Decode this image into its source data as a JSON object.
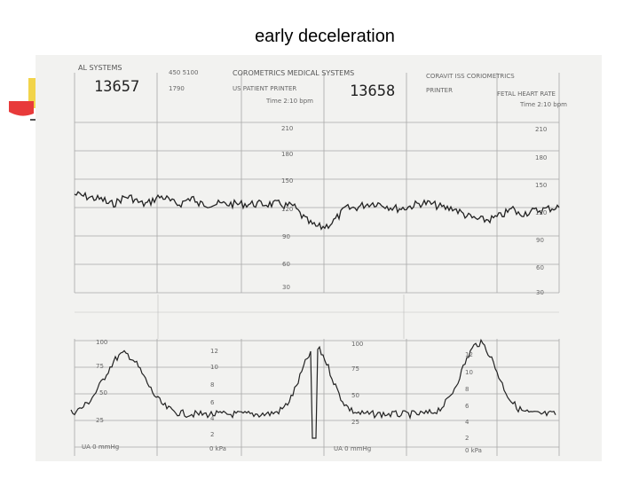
{
  "slide": {
    "title": "early deceleration"
  },
  "strip": {
    "header_left": "AL SYSTEMS",
    "header_code": "450 5100",
    "header_company": "COROMETRICS MEDICAL SYSTEMS",
    "header_right": "CORAVIT  ISS  CORIOMETRICS",
    "subheader_left": "1790",
    "subheader_mid": "US PATIENT PRINTER",
    "subheader_bpm": "Time 2:10 bpm",
    "subheader_right": "PRINTER",
    "subheader_right2": "FETAL HEART RATE",
    "subheader_right3": "Time 2:10 bpm",
    "page_number_1": "13657",
    "page_number_2": "13658",
    "fhr_scale_mid": [
      "210",
      "180",
      "150",
      "120",
      "90",
      "60",
      "30"
    ],
    "fhr_scale_right": [
      "210",
      "180",
      "150",
      "120",
      "90",
      "60",
      "30"
    ],
    "ua_scale_a": [
      "100",
      "75",
      "50",
      "25"
    ],
    "ua_scale_b": [
      "12",
      "10",
      "8",
      "6",
      "4",
      "2"
    ],
    "ua_scale_c": [
      "100",
      "75",
      "50",
      "25"
    ],
    "ua_scale_d": [
      "12",
      "10",
      "8",
      "6",
      "4",
      "2"
    ],
    "ua_label_1": "UA  0  mmHg",
    "ua_label_2": "0  kPa",
    "ua_label_3": "UA  0  mmHg",
    "ua_label_4": "0  kPa"
  },
  "colors": {
    "accent_yellow": "#f2d44a",
    "accent_red": "#e83a3a",
    "paper": "#f2f2f0",
    "grid": "#9a9a9a",
    "trace": "#222222"
  }
}
